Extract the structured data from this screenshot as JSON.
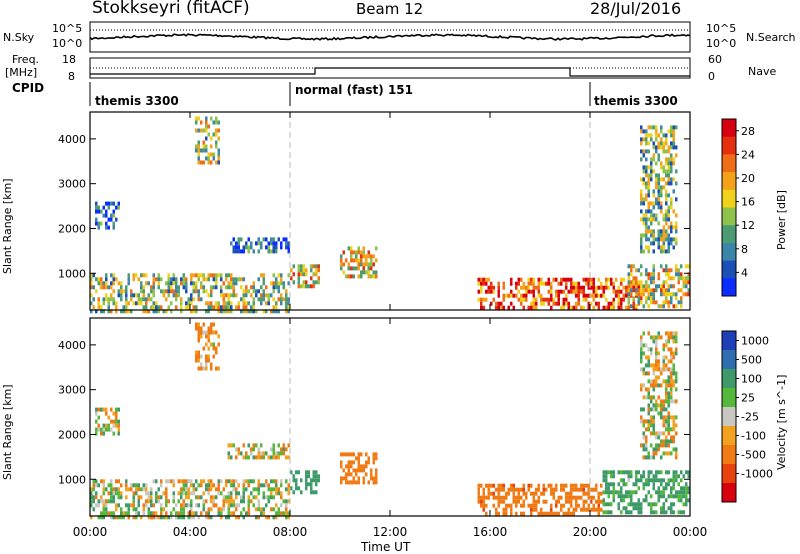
{
  "header": {
    "station": "Stokkseyri (fitACF)",
    "beam": "Beam 12",
    "date": "28/Jul/2016"
  },
  "side_labels": {
    "nsky": "N.Sky",
    "nsearch": "N.Search",
    "freq": "Freq.",
    "mhz": "[MHz]",
    "nave": "Nave",
    "cpid": "CPID"
  },
  "noise_axis": {
    "top": "10^5",
    "bottom": "10^0"
  },
  "freq_axis": {
    "left_top": "18",
    "left_bottom": "8",
    "right_top": "60",
    "right_bottom": "0"
  },
  "cpid_segments": [
    {
      "label": "themis 3300",
      "start_h": 0
    },
    {
      "label": "normal (fast) 151",
      "start_h": 8
    },
    {
      "label": "themis 3300",
      "start_h": 20
    }
  ],
  "time_axis": {
    "ticks": [
      "00:00",
      "04:00",
      "08:00",
      "12:00",
      "16:00",
      "20:00",
      "00:00"
    ],
    "label": "Time UT"
  },
  "chart_data": [
    {
      "type": "heatmap",
      "title": "Power",
      "xlabel": "Time UT",
      "ylabel": "Slant Range [km]",
      "xlim_hours": [
        0,
        24
      ],
      "ylim": [
        180,
        4600
      ],
      "y_ticks": [
        "1000",
        "2000",
        "3000",
        "4000"
      ],
      "colorbar": {
        "label": "Power [dB]",
        "ticks": [
          "4",
          "8",
          "12",
          "16",
          "20",
          "24",
          "28"
        ],
        "colors": [
          "#0a2cff",
          "#1b4fb5",
          "#3b86a8",
          "#4b9c73",
          "#8fc24a",
          "#f1d21b",
          "#f3a21a",
          "#ef6d17",
          "#e53010",
          "#d7000f"
        ],
        "range": [
          0,
          30
        ]
      },
      "echo_regions": [
        {
          "t": [
            0.0,
            8.0
          ],
          "r": [
            180,
            1000
          ],
          "power_db": 14
        },
        {
          "t": [
            0.2,
            1.2
          ],
          "r": [
            2000,
            2600
          ],
          "power_db": 6
        },
        {
          "t": [
            4.2,
            5.2
          ],
          "r": [
            3500,
            4500
          ],
          "power_db": 14
        },
        {
          "t": [
            5.5,
            8.0
          ],
          "r": [
            1500,
            1800
          ],
          "power_db": 5
        },
        {
          "t": [
            8.0,
            9.2
          ],
          "r": [
            700,
            1200
          ],
          "power_db": 18
        },
        {
          "t": [
            10.0,
            11.5
          ],
          "r": [
            900,
            1600
          ],
          "power_db": 18
        },
        {
          "t": [
            15.5,
            22.0
          ],
          "r": [
            200,
            900
          ],
          "power_db": 24
        },
        {
          "t": [
            21.5,
            24.0
          ],
          "r": [
            300,
            1200
          ],
          "power_db": 16
        },
        {
          "t": [
            22.0,
            23.5
          ],
          "r": [
            1500,
            4300
          ],
          "power_db": 12
        }
      ]
    },
    {
      "type": "heatmap",
      "title": "Velocity",
      "xlabel": "Time UT",
      "ylabel": "Slant Range [km]",
      "xlim_hours": [
        0,
        24
      ],
      "ylim": [
        180,
        4600
      ],
      "y_ticks": [
        "1000",
        "2000",
        "3000",
        "4000"
      ],
      "colorbar": {
        "label": "Velocity [m s^-1]",
        "ticks": [
          "1000",
          "500",
          "100",
          "25",
          "-25",
          "-100",
          "-500",
          "-1000"
        ],
        "colors": [
          "#1f3fb8",
          "#2f6fb0",
          "#3f9a6a",
          "#56b83a",
          "#c8c8c0",
          "#f2a21e",
          "#f07a14",
          "#e8420e",
          "#d8000e"
        ],
        "range": [
          -1200,
          1200
        ]
      },
      "echo_regions": [
        {
          "t": [
            0.0,
            8.0
          ],
          "r": [
            180,
            1000
          ],
          "velocity_ms": 10
        },
        {
          "t": [
            0.2,
            1.2
          ],
          "r": [
            2000,
            2600
          ],
          "velocity_ms": 0
        },
        {
          "t": [
            4.2,
            5.2
          ],
          "r": [
            3500,
            4500
          ],
          "velocity_ms": -150
        },
        {
          "t": [
            5.5,
            8.0
          ],
          "r": [
            1500,
            1800
          ],
          "velocity_ms": 0
        },
        {
          "t": [
            8.0,
            9.2
          ],
          "r": [
            700,
            1200
          ],
          "velocity_ms": 300
        },
        {
          "t": [
            10.0,
            11.5
          ],
          "r": [
            900,
            1600
          ],
          "velocity_ms": -300
        },
        {
          "t": [
            15.5,
            20.5
          ],
          "r": [
            200,
            900
          ],
          "velocity_ms": -350
        },
        {
          "t": [
            20.5,
            24.0
          ],
          "r": [
            300,
            1200
          ],
          "velocity_ms": 200
        },
        {
          "t": [
            22.0,
            23.5
          ],
          "r": [
            1500,
            4300
          ],
          "velocity_ms": 0
        }
      ]
    }
  ]
}
